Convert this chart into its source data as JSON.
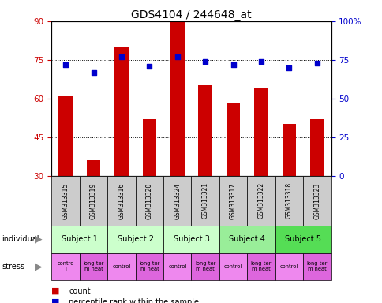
{
  "title": "GDS4104 / 244648_at",
  "samples": [
    "GSM313315",
    "GSM313319",
    "GSM313316",
    "GSM313320",
    "GSM313324",
    "GSM313321",
    "GSM313317",
    "GSM313322",
    "GSM313318",
    "GSM313323"
  ],
  "counts": [
    61,
    36,
    80,
    52,
    91,
    65,
    58,
    64,
    50,
    52
  ],
  "percentile_ranks": [
    72,
    67,
    77,
    71,
    77,
    74,
    72,
    74,
    70,
    73
  ],
  "ylim_left": [
    30,
    90
  ],
  "ylim_right": [
    0,
    100
  ],
  "yticks_left": [
    30,
    45,
    60,
    75,
    90
  ],
  "yticks_right": [
    0,
    25,
    50,
    75,
    100
  ],
  "subjects": [
    {
      "label": "Subject 1",
      "start": 0,
      "end": 2,
      "color": "#ccffcc"
    },
    {
      "label": "Subject 2",
      "start": 2,
      "end": 4,
      "color": "#ccffcc"
    },
    {
      "label": "Subject 3",
      "start": 4,
      "end": 6,
      "color": "#ccffcc"
    },
    {
      "label": "Subject 4",
      "start": 6,
      "end": 8,
      "color": "#99ee99"
    },
    {
      "label": "Subject 5",
      "start": 8,
      "end": 10,
      "color": "#55dd55"
    }
  ],
  "stress_labels": [
    "contro\nl",
    "long-ter\nm heat",
    "control",
    "long-ter\nm heat",
    "control",
    "long-ter\nm heat",
    "control",
    "long-ter\nm heat",
    "control",
    "long-ter\nm heat"
  ],
  "stress_colors": [
    "#ee88ee",
    "#dd66dd",
    "#ee88ee",
    "#dd66dd",
    "#ee88ee",
    "#dd66dd",
    "#ee88ee",
    "#dd66dd",
    "#ee88ee",
    "#dd66dd"
  ],
  "bar_color": "#cc0000",
  "dot_color": "#0000cc",
  "sample_bg_color": "#cccccc",
  "bar_width": 0.5,
  "left_tick_color": "#cc0000",
  "right_tick_color": "#0000cc",
  "label_individual": "individual",
  "label_stress": "stress",
  "legend_count": "count",
  "legend_pct": "percentile rank within the sample"
}
